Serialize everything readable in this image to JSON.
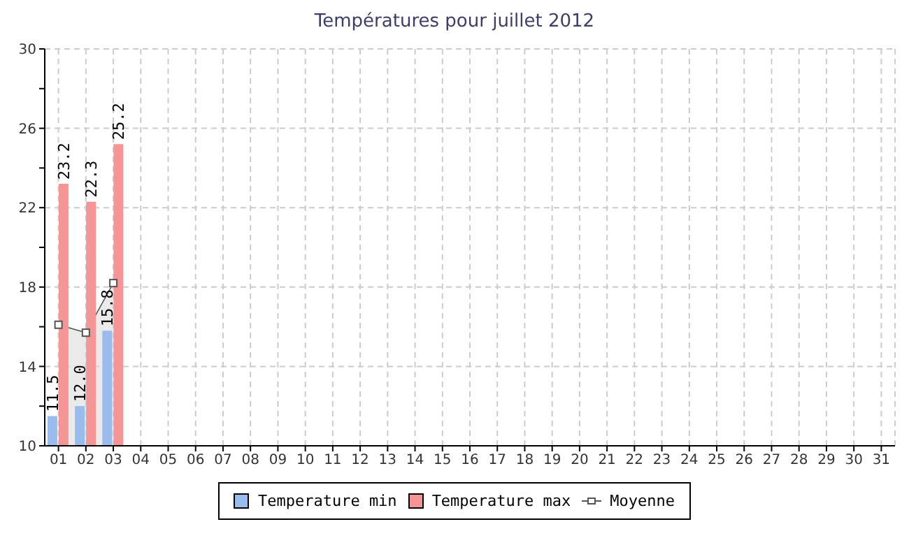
{
  "chart_data": {
    "type": "bar",
    "title": "Températures pour juillet 2012",
    "categories": [
      "01",
      "02",
      "03",
      "04",
      "05",
      "06",
      "07",
      "08",
      "09",
      "10",
      "11",
      "12",
      "13",
      "14",
      "15",
      "16",
      "17",
      "18",
      "19",
      "20",
      "21",
      "22",
      "23",
      "24",
      "25",
      "26",
      "27",
      "28",
      "29",
      "30",
      "31"
    ],
    "series": [
      {
        "name": "Temperature min",
        "color": "#99bbee",
        "values": [
          11.5,
          12.0,
          15.8,
          null,
          null,
          null,
          null,
          null,
          null,
          null,
          null,
          null,
          null,
          null,
          null,
          null,
          null,
          null,
          null,
          null,
          null,
          null,
          null,
          null,
          null,
          null,
          null,
          null,
          null,
          null,
          null
        ],
        "value_labels": [
          "11.5",
          "12.0",
          "15.8",
          null,
          null,
          null,
          null,
          null,
          null,
          null,
          null,
          null,
          null,
          null,
          null,
          null,
          null,
          null,
          null,
          null,
          null,
          null,
          null,
          null,
          null,
          null,
          null,
          null,
          null,
          null,
          null
        ]
      },
      {
        "name": "Temperature max",
        "color": "#f59595",
        "values": [
          23.2,
          22.3,
          25.2,
          null,
          null,
          null,
          null,
          null,
          null,
          null,
          null,
          null,
          null,
          null,
          null,
          null,
          null,
          null,
          null,
          null,
          null,
          null,
          null,
          null,
          null,
          null,
          null,
          null,
          null,
          null,
          null
        ],
        "value_labels": [
          "23.2",
          "22.3",
          "25.2",
          null,
          null,
          null,
          null,
          null,
          null,
          null,
          null,
          null,
          null,
          null,
          null,
          null,
          null,
          null,
          null,
          null,
          null,
          null,
          null,
          null,
          null,
          null,
          null,
          null,
          null,
          null,
          null
        ]
      },
      {
        "name": "Moyenne",
        "type": "area",
        "color": "#555555",
        "marker": "square",
        "values": [
          16.1,
          15.7,
          18.2,
          null,
          null,
          null,
          null,
          null,
          null,
          null,
          null,
          null,
          null,
          null,
          null,
          null,
          null,
          null,
          null,
          null,
          null,
          null,
          null,
          null,
          null,
          null,
          null,
          null,
          null,
          null,
          null
        ]
      }
    ],
    "ylim": [
      10,
      30
    ],
    "yticks": [
      10,
      {
        "value": 12,
        "label": null
      },
      14,
      {
        "value": 16,
        "label": null
      },
      18,
      {
        "value": 20,
        "label": null
      },
      22,
      {
        "value": 24,
        "label": null
      },
      26,
      {
        "value": 28,
        "label": null
      },
      30
    ],
    "grid": true,
    "legend": "bottom"
  }
}
